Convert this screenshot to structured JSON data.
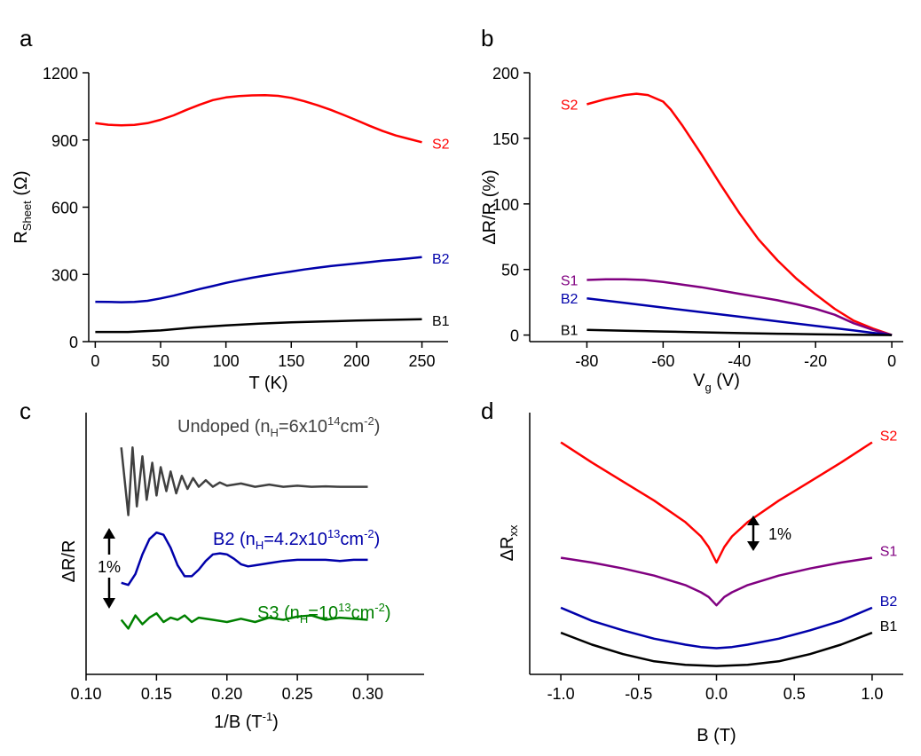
{
  "chart_data": [
    {
      "panel": "a",
      "type": "line",
      "xlabel": "T (K)",
      "ylabel": "R",
      "ylabel_sub": "Sheet",
      "ylabel_unit": " (Ω)",
      "xlim": [
        -5,
        270
      ],
      "ylim": [
        0,
        1200
      ],
      "xticks": [
        0,
        50,
        100,
        150,
        200,
        250
      ],
      "xtick_labels": [
        "0",
        "50",
        "100",
        "150",
        "200",
        "250"
      ],
      "yticks": [
        0,
        300,
        600,
        900,
        1200
      ],
      "ytick_labels": [
        "0",
        "300",
        "600",
        "900",
        "1200"
      ],
      "series": [
        {
          "name": "S2",
          "color": "#ff0000",
          "x": [
            0,
            10,
            20,
            30,
            40,
            50,
            60,
            70,
            80,
            90,
            100,
            110,
            120,
            130,
            140,
            150,
            160,
            170,
            180,
            190,
            200,
            210,
            220,
            230,
            240,
            250
          ],
          "y": [
            975,
            968,
            965,
            967,
            975,
            990,
            1010,
            1035,
            1058,
            1078,
            1090,
            1096,
            1099,
            1100,
            1097,
            1088,
            1073,
            1055,
            1035,
            1012,
            988,
            963,
            940,
            920,
            905,
            890
          ]
        },
        {
          "name": "B2",
          "color": "#0000aa",
          "x": [
            0,
            10,
            20,
            30,
            40,
            50,
            60,
            70,
            80,
            90,
            100,
            110,
            120,
            130,
            140,
            150,
            160,
            170,
            180,
            190,
            200,
            210,
            220,
            230,
            240,
            250
          ],
          "y": [
            178,
            177,
            176,
            177,
            182,
            193,
            205,
            220,
            235,
            248,
            262,
            274,
            285,
            295,
            304,
            313,
            322,
            330,
            337,
            343,
            349,
            355,
            361,
            366,
            371,
            377
          ]
        },
        {
          "name": "B1",
          "color": "#000000",
          "x": [
            0,
            25,
            50,
            75,
            100,
            125,
            150,
            175,
            200,
            225,
            250
          ],
          "y": [
            43,
            43,
            50,
            63,
            72,
            80,
            86,
            90,
            94,
            97,
            100
          ]
        }
      ]
    },
    {
      "panel": "b",
      "type": "line",
      "xlabel": "V",
      "xlabel_sub": "g",
      "xlabel_unit": " (V)",
      "ylabel": "ΔR/R (%)",
      "xlim": [
        -95,
        3
      ],
      "ylim": [
        -5,
        200
      ],
      "xticks": [
        -80,
        -60,
        -40,
        -20,
        0
      ],
      "xtick_labels": [
        "-80",
        "-60",
        "-40",
        "-20",
        "0"
      ],
      "yticks": [
        0,
        50,
        100,
        150,
        200
      ],
      "ytick_labels": [
        "0",
        "50",
        "100",
        "150",
        "200"
      ],
      "series": [
        {
          "name": "S2",
          "color": "#ff0000",
          "x": [
            -80,
            -75,
            -70,
            -67,
            -64,
            -60,
            -58,
            -55,
            -50,
            -45,
            -40,
            -35,
            -30,
            -25,
            -20,
            -15,
            -10,
            -5,
            0
          ],
          "y": [
            176,
            180,
            183,
            184,
            183,
            178,
            172,
            160,
            138,
            115,
            93,
            73,
            57,
            43,
            31,
            20,
            11,
            5,
            0
          ]
        },
        {
          "name": "S1",
          "color": "#800080",
          "x": [
            -80,
            -75,
            -70,
            -65,
            -60,
            -55,
            -50,
            -45,
            -40,
            -35,
            -30,
            -25,
            -20,
            -15,
            -10,
            -5,
            0
          ],
          "y": [
            42,
            42.5,
            42.5,
            42,
            40.5,
            38.5,
            36.5,
            34,
            31.5,
            29,
            26.5,
            23.5,
            20,
            15.5,
            9,
            4,
            0
          ]
        },
        {
          "name": "B2",
          "color": "#0000aa",
          "x": [
            -80,
            -70,
            -60,
            -50,
            -40,
            -30,
            -20,
            -10,
            -5,
            0
          ],
          "y": [
            28,
            24.5,
            21,
            17.5,
            14,
            10.5,
            7,
            3.5,
            1.7,
            0
          ]
        },
        {
          "name": "B1",
          "color": "#000000",
          "x": [
            -80,
            -70,
            -60,
            -50,
            -40,
            -30,
            -20,
            -10,
            0
          ],
          "y": [
            4,
            3.3,
            2.7,
            2.1,
            1.5,
            1,
            0.6,
            0.3,
            0
          ]
        }
      ]
    },
    {
      "panel": "c",
      "type": "line",
      "xlabel": "1/B (T",
      "xlabel_sup": "-1",
      "xlabel_close": ")",
      "ylabel": "ΔR/R",
      "xlim": [
        0.1,
        0.34
      ],
      "ylim": [
        -6,
        6
      ],
      "xticks": [
        0.1,
        0.15,
        0.2,
        0.25,
        0.3
      ],
      "xtick_labels": [
        "0.10",
        "0.15",
        "0.20",
        "0.25",
        "0.30"
      ],
      "scale_bar_label": "1%",
      "annotations": [
        {
          "text": "Undoped (n",
          "sub": "H",
          "mid": "=6x10",
          "sup": "14",
          "unit": "cm",
          "unit_sup": "-2",
          "end": ")",
          "color": "#404040"
        },
        {
          "text": "B2 (n",
          "sub": "H",
          "mid": "=4.2x10",
          "sup": "13",
          "unit": "cm",
          "unit_sup": "-2",
          "end": ")",
          "color": "#0000aa"
        },
        {
          "text": "S3 (n",
          "sub": "H",
          "mid": "=10",
          "sup": "13",
          "unit": "cm",
          "unit_sup": "-2",
          "end": ")",
          "color": "#008000"
        }
      ],
      "series": [
        {
          "name": "Undoped",
          "color": "#404040",
          "offset": 2.5,
          "x": [
            0.125,
            0.13,
            0.133,
            0.136,
            0.14,
            0.143,
            0.147,
            0.15,
            0.153,
            0.157,
            0.16,
            0.164,
            0.168,
            0.172,
            0.176,
            0.18,
            0.185,
            0.19,
            0.195,
            0.2,
            0.21,
            0.22,
            0.23,
            0.24,
            0.25,
            0.26,
            0.27,
            0.28,
            0.29,
            0.3
          ],
          "y": [
            1.9,
            -1.2,
            1.9,
            -0.8,
            1.5,
            -0.5,
            1.2,
            -0.3,
            1.0,
            -0.1,
            0.8,
            -0.2,
            0.6,
            0.0,
            0.5,
            0.1,
            0.4,
            0.1,
            0.3,
            0.15,
            0.25,
            0.1,
            0.2,
            0.1,
            0.15,
            0.1,
            0.12,
            0.1,
            0.1,
            0.1
          ]
        },
        {
          "name": "B2",
          "color": "#0000aa",
          "offset": -0.8,
          "x": [
            0.125,
            0.13,
            0.135,
            0.14,
            0.145,
            0.15,
            0.155,
            0.16,
            0.165,
            0.17,
            0.175,
            0.18,
            0.185,
            0.19,
            0.195,
            0.2,
            0.205,
            0.21,
            0.215,
            0.22,
            0.23,
            0.24,
            0.25,
            0.26,
            0.27,
            0.28,
            0.29,
            0.3
          ],
          "y": [
            -1.0,
            -1.1,
            -0.6,
            0.3,
            1.0,
            1.3,
            1.2,
            0.6,
            -0.2,
            -0.7,
            -0.7,
            -0.4,
            0.0,
            0.3,
            0.35,
            0.3,
            0.1,
            -0.15,
            -0.25,
            -0.2,
            -0.1,
            0.0,
            0.05,
            0.05,
            0.05,
            0.0,
            0.05,
            0.05
          ]
        },
        {
          "name": "S3",
          "color": "#008000",
          "offset": -3.6,
          "x": [
            0.125,
            0.13,
            0.135,
            0.14,
            0.145,
            0.15,
            0.155,
            0.16,
            0.165,
            0.17,
            0.175,
            0.18,
            0.19,
            0.2,
            0.21,
            0.22,
            0.23,
            0.24,
            0.25,
            0.26,
            0.27,
            0.28,
            0.29,
            0.3
          ],
          "y": [
            0.1,
            -0.3,
            0.3,
            -0.1,
            0.2,
            0.4,
            0.0,
            0.2,
            0.1,
            0.3,
            0.0,
            0.2,
            0.1,
            0.0,
            0.15,
            0.0,
            0.2,
            0.1,
            0.25,
            0.3,
            0.1,
            0.2,
            0.15,
            0.1
          ]
        }
      ]
    },
    {
      "panel": "d",
      "type": "line",
      "xlabel": "B (T)",
      "ylabel": "ΔR",
      "ylabel_sub": "xx",
      "xlim": [
        -1.2,
        1.2
      ],
      "ylim": [
        -6,
        16
      ],
      "xticks": [
        -1.0,
        -0.5,
        0.0,
        0.5,
        1.0
      ],
      "xtick_labels": [
        "-1.0",
        "-0.5",
        "0.0",
        "0.5",
        "1.0"
      ],
      "scale_bar_label": "1%",
      "series": [
        {
          "name": "S2",
          "color": "#ff0000",
          "x": [
            -1.0,
            -0.8,
            -0.6,
            -0.4,
            -0.2,
            -0.1,
            -0.05,
            0.0,
            0.05,
            0.1,
            0.2,
            0.4,
            0.6,
            0.8,
            1.0
          ],
          "y": [
            13.5,
            11.8,
            10.2,
            8.6,
            6.8,
            5.6,
            4.7,
            3.4,
            4.7,
            5.6,
            6.8,
            8.6,
            10.2,
            11.8,
            13.5
          ]
        },
        {
          "name": "S1",
          "color": "#800080",
          "x": [
            -1.0,
            -0.8,
            -0.6,
            -0.4,
            -0.2,
            -0.1,
            -0.05,
            0.0,
            0.05,
            0.1,
            0.2,
            0.4,
            0.6,
            0.8,
            1.0
          ],
          "y": [
            3.8,
            3.4,
            2.9,
            2.3,
            1.5,
            0.9,
            0.5,
            -0.2,
            0.5,
            0.9,
            1.5,
            2.3,
            2.9,
            3.4,
            3.8
          ]
        },
        {
          "name": "B2",
          "color": "#0000aa",
          "x": [
            -1.0,
            -0.8,
            -0.6,
            -0.4,
            -0.2,
            -0.1,
            0.0,
            0.1,
            0.2,
            0.4,
            0.6,
            0.8,
            1.0
          ],
          "y": [
            -0.4,
            -1.5,
            -2.3,
            -3.0,
            -3.5,
            -3.7,
            -3.8,
            -3.7,
            -3.5,
            -3.0,
            -2.3,
            -1.5,
            -0.4
          ]
        },
        {
          "name": "B1",
          "color": "#000000",
          "x": [
            -1.0,
            -0.8,
            -0.6,
            -0.4,
            -0.2,
            0.0,
            0.2,
            0.4,
            0.6,
            0.8,
            1.0
          ],
          "y": [
            -2.5,
            -3.5,
            -4.3,
            -4.9,
            -5.2,
            -5.3,
            -5.2,
            -4.9,
            -4.3,
            -3.5,
            -2.5
          ]
        }
      ]
    }
  ]
}
